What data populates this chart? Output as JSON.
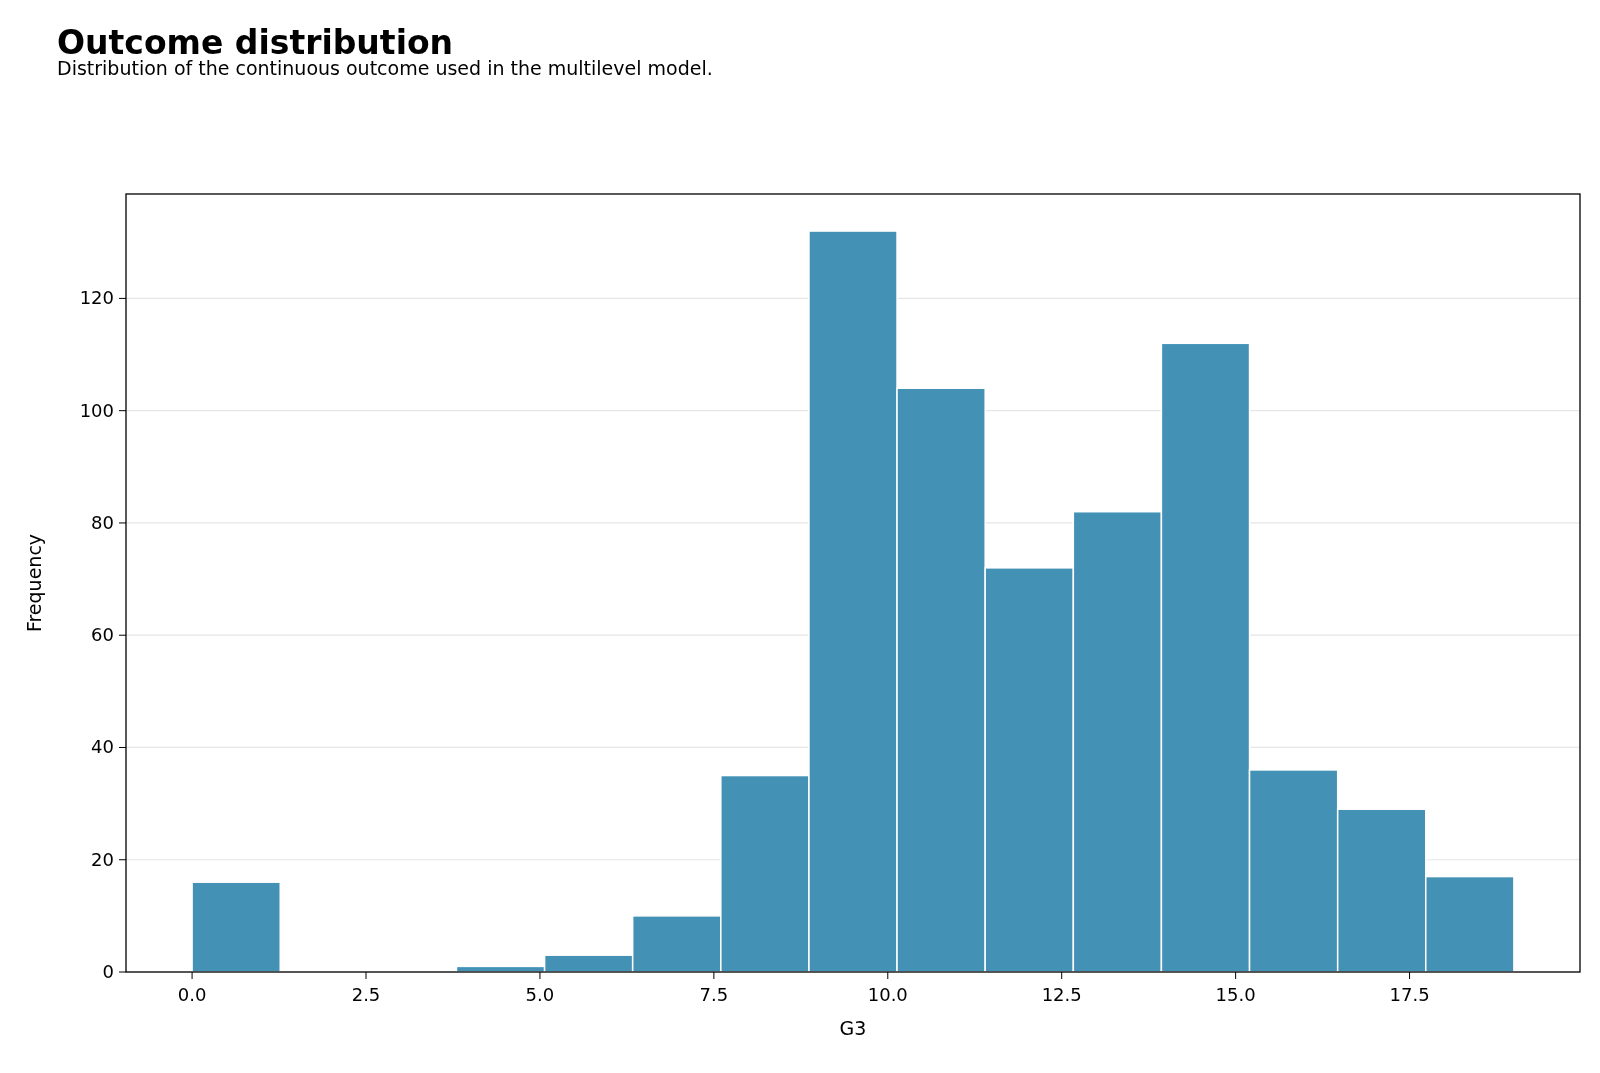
{
  "chart_data": {
    "type": "histogram",
    "title": "Outcome distribution",
    "subtitle": "Distribution of the continuous outcome used in the multilevel model.",
    "xlabel": "G3",
    "ylabel": "Frequency",
    "bins": [
      0,
      1.267,
      2.533,
      3.8,
      5.067,
      6.333,
      7.6,
      8.867,
      10.133,
      11.4,
      12.667,
      13.933,
      15.2,
      16.467,
      17.733,
      19
    ],
    "values": [
      16,
      0,
      0,
      1,
      3,
      10,
      35,
      132,
      104,
      72,
      82,
      112,
      36,
      29,
      17
    ],
    "color": "#4392b5",
    "xlim": [
      -0.95,
      19.95
    ],
    "xticks": [
      {
        "value": 0,
        "label": "0.0"
      },
      {
        "value": 2.5,
        "label": "2.5"
      },
      {
        "value": 5,
        "label": "5.0"
      },
      {
        "value": 7.5,
        "label": "7.5"
      },
      {
        "value": 10,
        "label": "10.0"
      },
      {
        "value": 12.5,
        "label": "12.5"
      },
      {
        "value": 15,
        "label": "15.0"
      },
      {
        "value": 17.5,
        "label": "17.5"
      }
    ],
    "ylim": [
      0,
      138.6
    ],
    "yticks": [
      0,
      20,
      40,
      60,
      80,
      100,
      120
    ],
    "grid": "y"
  }
}
